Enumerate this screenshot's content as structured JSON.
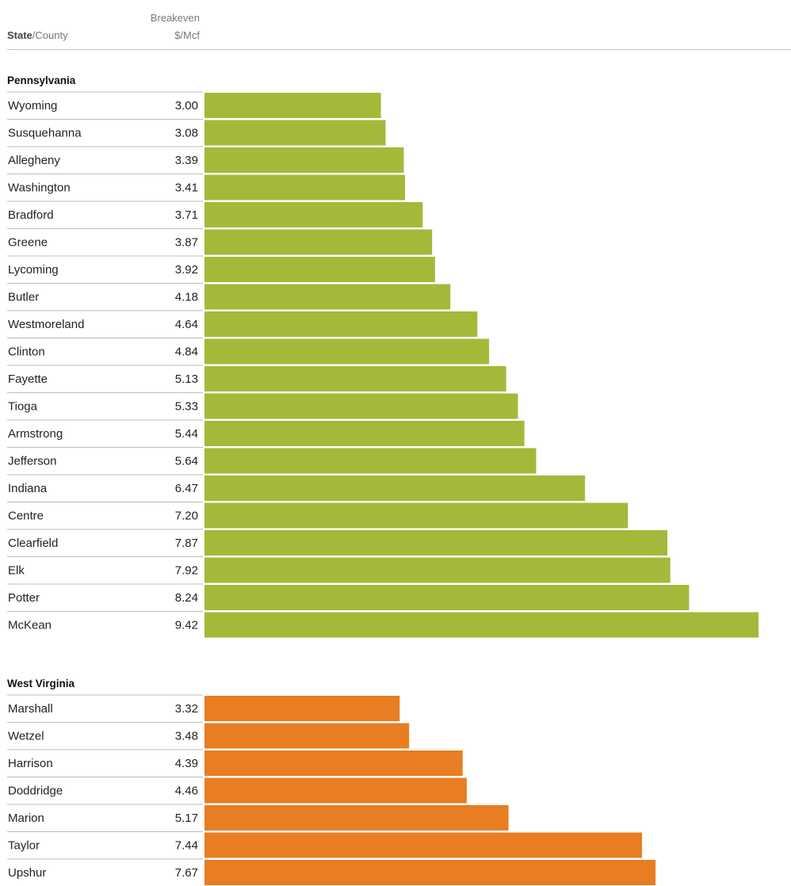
{
  "header": {
    "state_bold": "State",
    "county_suffix": "/County",
    "breakeven_line1": "Breakeven",
    "breakeven_line2": "$/Mcf"
  },
  "colors": {
    "Pennsylvania": "#a3b93a",
    "West Virginia": "#e87d22"
  },
  "chart_data": {
    "type": "bar",
    "orientation": "horizontal",
    "xlabel": "Breakeven $/Mcf",
    "ylabel": "State/County",
    "grid": false,
    "groups": [
      {
        "state": "Pennsylvania",
        "categories": [
          "Wyoming",
          "Susquehanna",
          "Allegheny",
          "Washington",
          "Bradford",
          "Greene",
          "Lycoming",
          "Butler",
          "Westmoreland",
          "Clinton",
          "Fayette",
          "Tioga",
          "Armstrong",
          "Jefferson",
          "Indiana",
          "Centre",
          "Clearfield",
          "Elk",
          "Potter",
          "McKean"
        ],
        "values": [
          3.0,
          3.08,
          3.39,
          3.41,
          3.71,
          3.87,
          3.92,
          4.18,
          4.64,
          4.84,
          5.13,
          5.33,
          5.44,
          5.64,
          6.47,
          7.2,
          7.87,
          7.92,
          8.24,
          9.42
        ],
        "labels": [
          "3.00",
          "3.08",
          "3.39",
          "3.41",
          "3.71",
          "3.87",
          "3.92",
          "4.18",
          "4.64",
          "4.84",
          "5.13",
          "5.33",
          "5.44",
          "5.64",
          "6.47",
          "7.20",
          "7.87",
          "7.92",
          "8.24",
          "9.42"
        ]
      },
      {
        "state": "West Virginia",
        "categories": [
          "Marshall",
          "Wetzel",
          "Harrison",
          "Doddridge",
          "Marion",
          "Taylor",
          "Upshur"
        ],
        "values": [
          3.32,
          3.48,
          4.39,
          4.46,
          5.17,
          7.44,
          7.67
        ],
        "labels": [
          "3.32",
          "3.48",
          "4.39",
          "4.46",
          "5.17",
          "7.44",
          "7.67"
        ]
      }
    ]
  }
}
